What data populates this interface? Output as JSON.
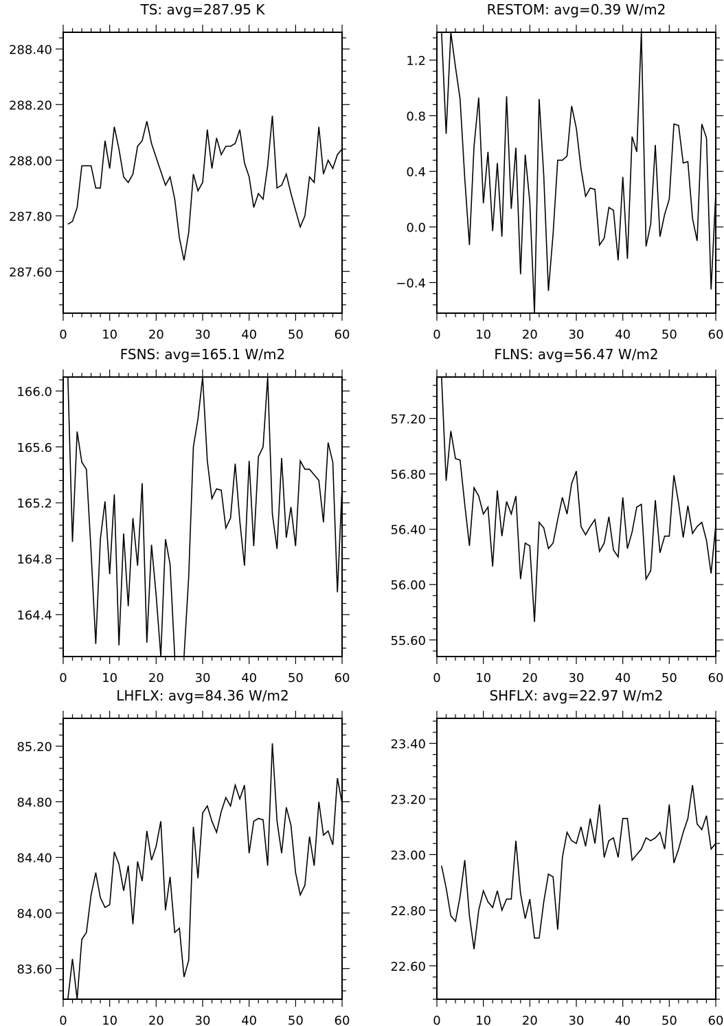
{
  "chart_data": [
    {
      "type": "line",
      "title": "TS: avg=287.95 K",
      "xlim": [
        0,
        60
      ],
      "ylim": [
        287.45,
        288.46
      ],
      "xticks": [
        "0",
        "10",
        "20",
        "30",
        "40",
        "50",
        "60"
      ],
      "yticks": [
        "287.60",
        "287.80",
        "288.00",
        "288.20",
        "288.40"
      ],
      "x": [
        1,
        2,
        3,
        4,
        5,
        6,
        7,
        8,
        9,
        10,
        11,
        12,
        13,
        14,
        15,
        16,
        17,
        18,
        19,
        20,
        21,
        22,
        23,
        24,
        25,
        26,
        27,
        28,
        29,
        30,
        31,
        32,
        33,
        34,
        35,
        36,
        37,
        38,
        39,
        40,
        41,
        42,
        43,
        44,
        45,
        46,
        47,
        48,
        49,
        50,
        51,
        52,
        53,
        54,
        55,
        56,
        57,
        58,
        59,
        60
      ],
      "series": [
        {
          "values": [
            287.77,
            287.78,
            287.83,
            287.98,
            287.98,
            287.98,
            287.9,
            287.9,
            288.07,
            287.97,
            288.12,
            288.04,
            287.94,
            287.92,
            287.95,
            288.05,
            288.07,
            288.14,
            288.06,
            288.01,
            287.96,
            287.91,
            287.94,
            287.86,
            287.72,
            287.64,
            287.74,
            287.95,
            287.89,
            287.92,
            288.11,
            287.97,
            288.08,
            288.02,
            288.05,
            288.05,
            288.06,
            288.11,
            287.99,
            287.94,
            287.83,
            287.88,
            287.86,
            287.98,
            288.16,
            287.9,
            287.91,
            287.95,
            287.88,
            287.82,
            287.76,
            287.8,
            287.94,
            287.92,
            288.12,
            287.95,
            288.0,
            287.97,
            288.02,
            288.04
          ]
        }
      ]
    },
    {
      "type": "line",
      "title": "RESTOM: avg=0.39 W/m2",
      "xlim": [
        0,
        60
      ],
      "ylim": [
        -0.62,
        1.4
      ],
      "xticks": [
        "0",
        "10",
        "20",
        "30",
        "40",
        "50",
        "60"
      ],
      "yticks": [
        "−0.4",
        "0.0",
        "0.4",
        "0.8",
        "1.2"
      ],
      "x": [
        1,
        2,
        3,
        4,
        5,
        6,
        7,
        8,
        9,
        10,
        11,
        12,
        13,
        14,
        15,
        16,
        17,
        18,
        19,
        20,
        21,
        22,
        23,
        24,
        25,
        26,
        27,
        28,
        29,
        30,
        31,
        32,
        33,
        34,
        35,
        36,
        37,
        38,
        39,
        40,
        41,
        42,
        43,
        44,
        45,
        46,
        47,
        48,
        49,
        50,
        51,
        52,
        53,
        54,
        55,
        56,
        57,
        58,
        59,
        60
      ],
      "series": [
        {
          "values": [
            1.4,
            0.67,
            1.4,
            1.15,
            0.92,
            0.35,
            -0.13,
            0.58,
            0.93,
            0.17,
            0.54,
            -0.03,
            0.46,
            -0.07,
            0.94,
            0.13,
            0.57,
            -0.34,
            0.52,
            0.18,
            -0.62,
            0.92,
            0.37,
            -0.46,
            -0.05,
            0.48,
            0.48,
            0.51,
            0.87,
            0.71,
            0.42,
            0.22,
            0.28,
            0.27,
            -0.13,
            -0.08,
            0.14,
            0.12,
            -0.24,
            0.36,
            -0.23,
            0.65,
            0.54,
            1.4,
            -0.14,
            0.02,
            0.59,
            -0.07,
            0.09,
            0.2,
            0.74,
            0.73,
            0.46,
            0.47,
            0.06,
            -0.1,
            0.74,
            0.64,
            -0.45,
            0.24
          ]
        }
      ]
    },
    {
      "type": "line",
      "title": "FSNS: avg=165.1 W/m2",
      "xlim": [
        0,
        60
      ],
      "ylim": [
        164.1,
        166.1
      ],
      "xticks": [
        "0",
        "10",
        "20",
        "30",
        "40",
        "50",
        "60"
      ],
      "yticks": [
        "164.4",
        "164.8",
        "165.2",
        "165.6",
        "166.0"
      ],
      "x": [
        1,
        2,
        3,
        4,
        5,
        6,
        7,
        8,
        9,
        10,
        11,
        12,
        13,
        14,
        15,
        16,
        17,
        18,
        19,
        20,
        21,
        22,
        23,
        24,
        25,
        26,
        27,
        28,
        29,
        30,
        31,
        32,
        33,
        34,
        35,
        36,
        37,
        38,
        39,
        40,
        41,
        42,
        43,
        44,
        45,
        46,
        47,
        48,
        49,
        50,
        51,
        52,
        53,
        54,
        55,
        56,
        57,
        58,
        59,
        60
      ],
      "series": [
        {
          "values": [
            166.1,
            164.92,
            165.71,
            165.49,
            165.44,
            164.85,
            164.19,
            164.94,
            165.21,
            164.69,
            165.26,
            164.18,
            164.98,
            164.46,
            165.09,
            164.75,
            165.34,
            164.2,
            164.9,
            164.54,
            164.1,
            164.94,
            164.76,
            164.1,
            164.1,
            164.1,
            164.67,
            165.6,
            165.8,
            166.1,
            165.5,
            165.23,
            165.3,
            165.29,
            165.02,
            165.09,
            165.48,
            165.07,
            164.75,
            165.5,
            164.89,
            165.53,
            165.6,
            166.1,
            165.12,
            164.87,
            165.52,
            164.95,
            165.17,
            164.89,
            165.5,
            165.44,
            165.44,
            165.4,
            165.36,
            165.06,
            165.63,
            165.49,
            164.56,
            165.31
          ]
        }
      ]
    },
    {
      "type": "line",
      "title": "FLNS: avg=56.47 W/m2",
      "xlim": [
        0,
        60
      ],
      "ylim": [
        55.48,
        57.5
      ],
      "xticks": [
        "0",
        "10",
        "20",
        "30",
        "40",
        "50",
        "60"
      ],
      "yticks": [
        "55.60",
        "56.00",
        "56.40",
        "56.80",
        "57.20"
      ],
      "x": [
        1,
        2,
        3,
        4,
        5,
        6,
        7,
        8,
        9,
        10,
        11,
        12,
        13,
        14,
        15,
        16,
        17,
        18,
        19,
        20,
        21,
        22,
        23,
        24,
        25,
        26,
        27,
        28,
        29,
        30,
        31,
        32,
        33,
        34,
        35,
        36,
        37,
        38,
        39,
        40,
        41,
        42,
        43,
        44,
        45,
        46,
        47,
        48,
        49,
        50,
        51,
        52,
        53,
        54,
        55,
        56,
        57,
        58,
        59,
        60
      ],
      "series": [
        {
          "values": [
            57.5,
            56.75,
            57.11,
            56.91,
            56.9,
            56.58,
            56.28,
            56.7,
            56.64,
            56.51,
            56.56,
            56.13,
            56.68,
            56.35,
            56.6,
            56.51,
            56.64,
            56.04,
            56.3,
            56.28,
            55.73,
            56.45,
            56.41,
            56.26,
            56.3,
            56.47,
            56.63,
            56.51,
            56.73,
            56.82,
            56.42,
            56.36,
            56.42,
            56.47,
            56.24,
            56.3,
            56.49,
            56.25,
            56.2,
            56.63,
            56.26,
            56.38,
            56.56,
            56.58,
            56.04,
            56.1,
            56.61,
            56.23,
            56.35,
            56.35,
            56.79,
            56.59,
            56.34,
            56.57,
            56.37,
            56.42,
            56.45,
            56.32,
            56.08,
            56.43
          ]
        }
      ]
    },
    {
      "type": "line",
      "title": "LHFLX: avg=84.36 W/m2",
      "xlim": [
        0,
        60
      ],
      "ylim": [
        83.38,
        85.4
      ],
      "xticks": [
        "0",
        "10",
        "20",
        "30",
        "40",
        "50",
        "60"
      ],
      "yticks": [
        "83.60",
        "84.00",
        "84.40",
        "84.80",
        "85.20"
      ],
      "x": [
        1,
        2,
        3,
        4,
        5,
        6,
        7,
        8,
        9,
        10,
        11,
        12,
        13,
        14,
        15,
        16,
        17,
        18,
        19,
        20,
        21,
        22,
        23,
        24,
        25,
        26,
        27,
        28,
        29,
        30,
        31,
        32,
        33,
        34,
        35,
        36,
        37,
        38,
        39,
        40,
        41,
        42,
        43,
        44,
        45,
        46,
        47,
        48,
        49,
        50,
        51,
        52,
        53,
        54,
        55,
        56,
        57,
        58,
        59,
        60
      ],
      "series": [
        {
          "values": [
            83.38,
            83.67,
            83.38,
            83.81,
            83.86,
            84.13,
            84.29,
            84.11,
            84.04,
            84.06,
            84.44,
            84.35,
            84.16,
            84.34,
            83.92,
            84.37,
            84.23,
            84.59,
            84.38,
            84.48,
            84.66,
            84.02,
            84.26,
            83.86,
            83.89,
            83.54,
            83.66,
            84.62,
            84.25,
            84.72,
            84.77,
            84.66,
            84.58,
            84.73,
            84.83,
            84.77,
            84.92,
            84.82,
            84.92,
            84.43,
            84.66,
            84.68,
            84.67,
            84.34,
            85.22,
            84.66,
            84.43,
            84.76,
            84.63,
            84.29,
            84.13,
            84.2,
            84.55,
            84.34,
            84.8,
            84.56,
            84.59,
            84.49,
            84.97,
            84.79
          ]
        }
      ]
    },
    {
      "type": "line",
      "title": "SHFLX: avg=22.97 W/m2",
      "xlim": [
        0,
        60
      ],
      "ylim": [
        22.48,
        23.49
      ],
      "xticks": [
        "0",
        "10",
        "20",
        "30",
        "40",
        "50",
        "60"
      ],
      "yticks": [
        "22.60",
        "22.80",
        "23.00",
        "23.20",
        "23.40"
      ],
      "x": [
        1,
        2,
        3,
        4,
        5,
        6,
        7,
        8,
        9,
        10,
        11,
        12,
        13,
        14,
        15,
        16,
        17,
        18,
        19,
        20,
        21,
        22,
        23,
        24,
        25,
        26,
        27,
        28,
        29,
        30,
        31,
        32,
        33,
        34,
        35,
        36,
        37,
        38,
        39,
        40,
        41,
        42,
        43,
        44,
        45,
        46,
        47,
        48,
        49,
        50,
        51,
        52,
        53,
        54,
        55,
        56,
        57,
        58,
        59,
        60
      ],
      "series": [
        {
          "values": [
            22.96,
            22.88,
            22.78,
            22.76,
            22.85,
            22.98,
            22.78,
            22.66,
            22.8,
            22.87,
            22.83,
            22.81,
            22.87,
            22.8,
            22.84,
            22.84,
            23.05,
            22.86,
            22.77,
            22.84,
            22.7,
            22.7,
            22.83,
            22.93,
            22.92,
            22.73,
            22.99,
            23.08,
            23.05,
            23.04,
            23.1,
            23.03,
            23.13,
            23.04,
            23.18,
            22.99,
            23.05,
            23.06,
            22.99,
            23.13,
            23.13,
            22.98,
            23.0,
            23.02,
            23.06,
            23.05,
            23.06,
            23.08,
            23.02,
            23.18,
            22.97,
            23.02,
            23.08,
            23.13,
            23.25,
            23.11,
            23.09,
            23.14,
            23.02,
            23.04
          ]
        }
      ]
    }
  ]
}
